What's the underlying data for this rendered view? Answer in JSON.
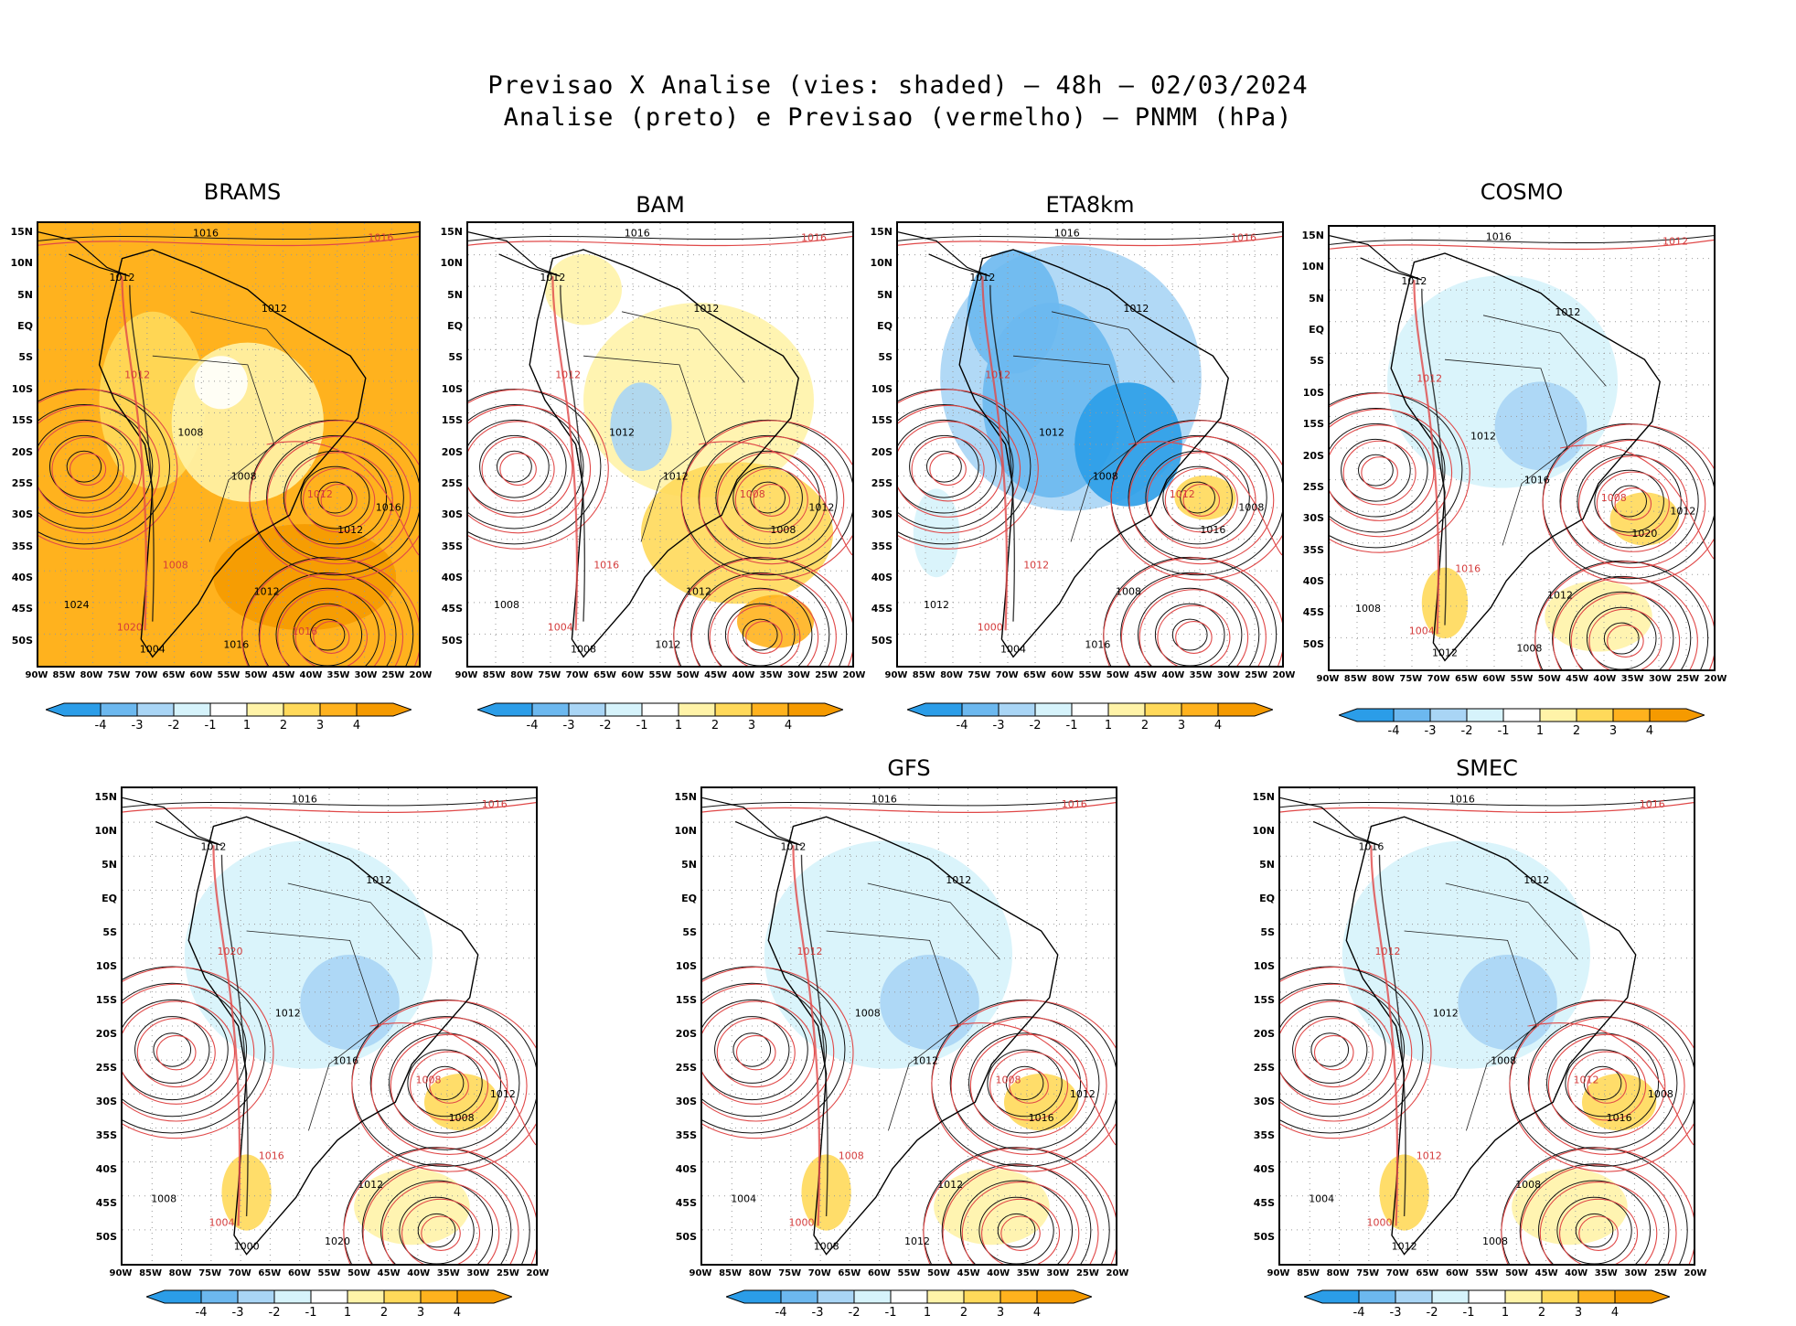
{
  "title": {
    "line1": "Previsao X Analise (vies: shaded) – 48h – 02/03/2024",
    "line2": "Analise (preto) e Previsao (vermelho) – PNMM (hPa)"
  },
  "lat_labels": [
    "15N",
    "10N",
    "5N",
    "EQ",
    "5S",
    "10S",
    "15S",
    "20S",
    "25S",
    "30S",
    "35S",
    "40S",
    "45S",
    "50S"
  ],
  "lon_labels": [
    "90W",
    "85W",
    "80W",
    "75W",
    "70W",
    "65W",
    "60W",
    "55W",
    "50W",
    "45W",
    "40W",
    "35W",
    "30W",
    "25W",
    "20W"
  ],
  "colorbar": {
    "labels": [
      "-4",
      "-3",
      "-2",
      "-1",
      "1",
      "2",
      "3",
      "4"
    ],
    "colors": [
      "#2b9de8",
      "#6cb8ef",
      "#a9d5f5",
      "#d6f3fb",
      "#ffffff",
      "#fff3a8",
      "#ffd95a",
      "#ffb21e",
      "#f59a00"
    ]
  },
  "panels": [
    {
      "title": "BRAMS",
      "tone": "warm",
      "labels": [
        "1016",
        "1016",
        "1012",
        "1012",
        "1012",
        "1008",
        "1008",
        "1012",
        "1016",
        "1012",
        "1008",
        "1012",
        "1024",
        "1020",
        "1004",
        "1016",
        "1016"
      ]
    },
    {
      "title": "BAM",
      "tone": "mixed",
      "labels": [
        "1016",
        "1016",
        "1012",
        "1012",
        "1012",
        "1012",
        "1012",
        "1008",
        "1012",
        "1008",
        "1016",
        "1012",
        "1008",
        "1004",
        "1008",
        "1012"
      ]
    },
    {
      "title": "ETA8km",
      "tone": "cool",
      "labels": [
        "1016",
        "1016",
        "1012",
        "1012",
        "1012",
        "1012",
        "1008",
        "1012",
        "1008",
        "1016",
        "1012",
        "1008",
        "1012",
        "1000",
        "1004",
        "1016"
      ]
    },
    {
      "title": "COSMO",
      "tone": "lightcool",
      "labels": [
        "1016",
        "1012",
        "1012",
        "1012",
        "1012",
        "1012",
        "1016",
        "1008",
        "1012",
        "1020",
        "1016",
        "1012",
        "1008",
        "1004",
        "1012",
        "1008"
      ]
    },
    {
      "title": "",
      "tone": "lightcool",
      "labels": [
        "1016",
        "1016",
        "1012",
        "1012",
        "1020",
        "1012",
        "1016",
        "1008",
        "1012",
        "1008",
        "1016",
        "1012",
        "1008",
        "1004",
        "1000",
        "1020"
      ]
    },
    {
      "title": "GFS",
      "tone": "lightcool",
      "labels": [
        "1016",
        "1016",
        "1012",
        "1012",
        "1012",
        "1008",
        "1012",
        "1008",
        "1012",
        "1016",
        "1008",
        "1012",
        "1004",
        "1000",
        "1008",
        "1012"
      ]
    },
    {
      "title": "SMEC",
      "tone": "lightcool",
      "labels": [
        "1016",
        "1016",
        "1016",
        "1012",
        "1012",
        "1012",
        "1008",
        "1012",
        "1008",
        "1016",
        "1012",
        "1008",
        "1004",
        "1000",
        "1012",
        "1008"
      ]
    }
  ]
}
